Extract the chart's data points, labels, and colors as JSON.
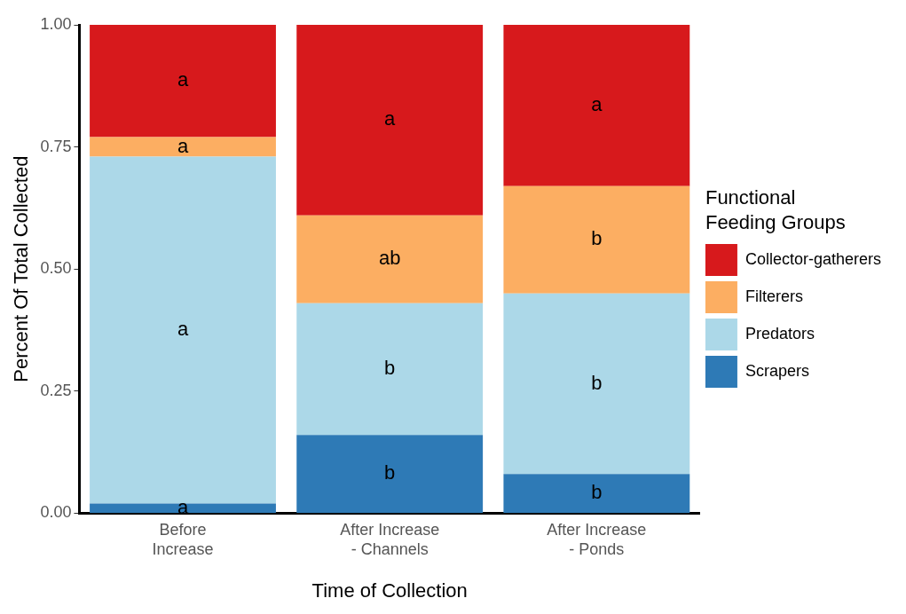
{
  "chart_data": {
    "type": "bar",
    "stacked": true,
    "xlabel": "Time of Collection",
    "ylabel": "Percent Of Total Collected",
    "legend_title": "Functional Feeding Groups",
    "legend": "right",
    "grid": false,
    "categories": [
      "Before Increase",
      "After Increase - Channels",
      "After Increase - Ponds"
    ],
    "ylim": [
      0,
      1
    ],
    "yticks": [
      {
        "value": 0,
        "label": "0.00"
      },
      {
        "value": 0.25,
        "label": "0.25"
      },
      {
        "value": 0.5,
        "label": "0.50"
      },
      {
        "value": 0.75,
        "label": "0.75"
      },
      {
        "value": 1,
        "label": "1.00"
      }
    ],
    "series": [
      {
        "name": "Scrapers",
        "color": "#2e7ab6",
        "values": [
          0.02,
          0.16,
          0.08
        ],
        "value_labels": [
          "a",
          "b",
          "b"
        ]
      },
      {
        "name": "Predators",
        "color": "#acd8e8",
        "values": [
          0.71,
          0.27,
          0.37
        ],
        "value_labels": [
          "a",
          "b",
          "b"
        ]
      },
      {
        "name": "Filterers",
        "color": "#fcae62",
        "values": [
          0.04,
          0.18,
          0.22
        ],
        "value_labels": [
          "a",
          "ab",
          "b"
        ]
      },
      {
        "name": "Collector-gatherers",
        "color": "#d7191c",
        "values": [
          0.23,
          0.39,
          0.33
        ],
        "value_labels": [
          "a",
          "a",
          "a"
        ]
      }
    ]
  }
}
